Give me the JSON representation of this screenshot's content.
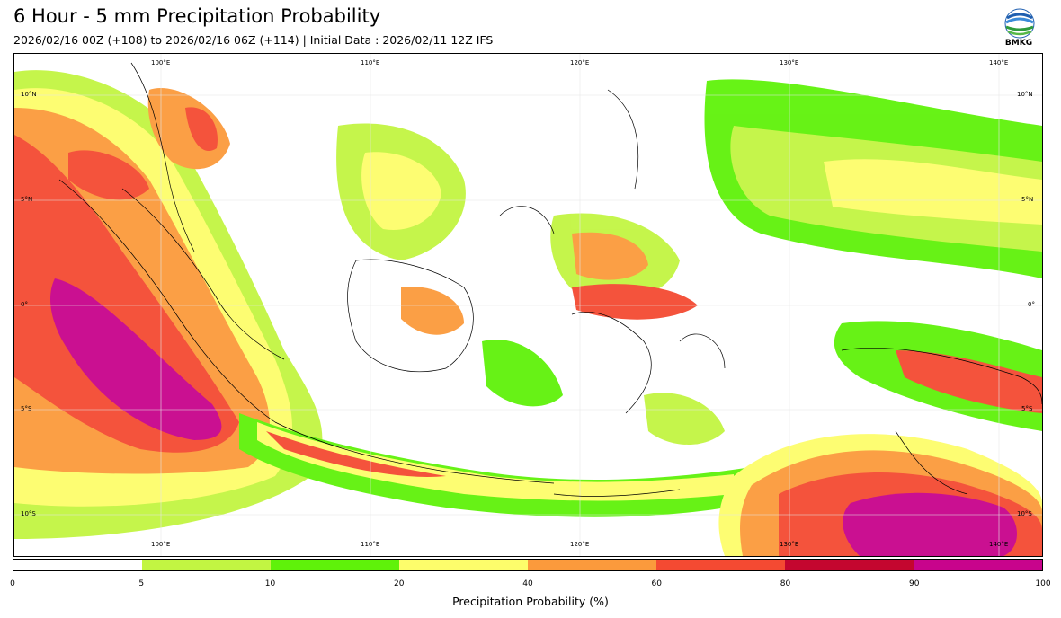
{
  "header": {
    "title": "6 Hour - 5 mm Precipitation Probability",
    "subtitle": "2026/02/16 00Z (+108) to 2026/02/16 06Z (+114) | Initial Data : 2026/02/11 12Z IFS"
  },
  "logo": {
    "text": "BMKG"
  },
  "map": {
    "lon_labels": [
      "100°E",
      "110°E",
      "120°E",
      "130°E",
      "140°E"
    ],
    "lat_labels": [
      "10°N",
      "5°N",
      "0°",
      "5°S",
      "10°S"
    ]
  },
  "colorbar": {
    "label": "Precipitation Probability (%)",
    "ticks": [
      "0",
      "5",
      "10",
      "20",
      "40",
      "60",
      "80",
      "90",
      "100"
    ],
    "colors": [
      "#ffffff",
      "#c2f542",
      "#5ff20a",
      "#fdfd6b",
      "#fb9a3c",
      "#f44a32",
      "#c4062f",
      "#c8048c"
    ]
  }
}
